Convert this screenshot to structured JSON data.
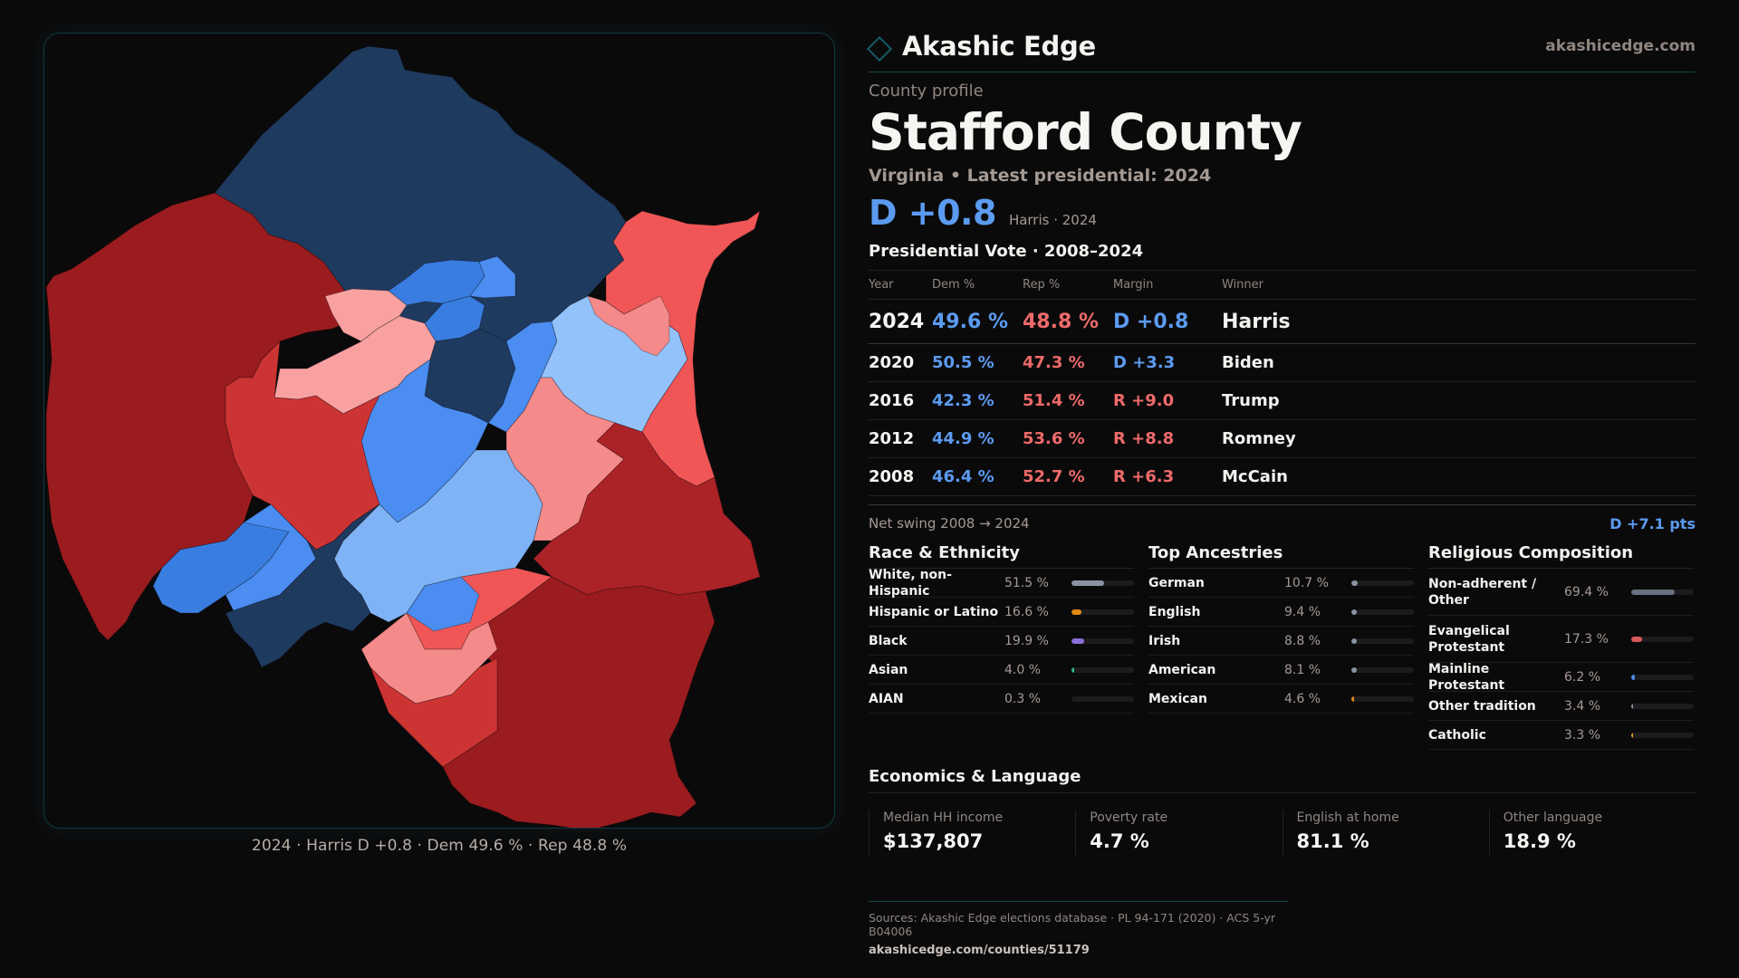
{
  "brand": {
    "name": "Akashic Edge",
    "url": "akashicedge.com",
    "icon": "diamond-outline-icon"
  },
  "profile": {
    "eyebrow": "County profile",
    "county": "Stafford County",
    "subtitle": "Virginia • Latest presidential: 2024",
    "headline_margin": "D +0.8",
    "headline_note": "Harris · 2024"
  },
  "map": {
    "caption": "2024 · Harris D +0.8 · Dem 49.6 % · Rep 48.8 %",
    "colors": {
      "dem_strong": "#1f3a5f",
      "dem_lean": "#3a7de0",
      "dem_mid": "#4b8df0",
      "dem_light": "#7fb3f5",
      "dem_pale": "#93c2fb",
      "rep_strong": "#9a1c1f",
      "rep_mid": "#ab2327",
      "rep_lean": "#cc3434",
      "rep_light": "#f05656",
      "rep_pale": "#f58a8a",
      "rep_faint": "#f9a1a1"
    }
  },
  "presidential": {
    "title": "Presidential Vote · 2008–2024",
    "columns": [
      "Year",
      "Dem %",
      "Rep %",
      "Margin",
      "Winner"
    ],
    "rows": [
      {
        "year": "2024",
        "dem": "49.6 %",
        "rep": "48.8 %",
        "margin": "D +0.8",
        "party": "D",
        "winner": "Harris"
      },
      {
        "year": "2020",
        "dem": "50.5 %",
        "rep": "47.3 %",
        "margin": "D +3.3",
        "party": "D",
        "winner": "Biden"
      },
      {
        "year": "2016",
        "dem": "42.3 %",
        "rep": "51.4 %",
        "margin": "R +9.0",
        "party": "R",
        "winner": "Trump"
      },
      {
        "year": "2012",
        "dem": "44.9 %",
        "rep": "53.6 %",
        "margin": "R +8.8",
        "party": "R",
        "winner": "Romney"
      },
      {
        "year": "2008",
        "dem": "46.4 %",
        "rep": "52.7 %",
        "margin": "R +6.3",
        "party": "R",
        "winner": "McCain"
      }
    ],
    "swing_label": "Net swing 2008 → 2024",
    "swing_value": "D +7.1 pts"
  },
  "race": {
    "title": "Race & Ethnicity",
    "items": [
      {
        "label": "White, non-Hispanic",
        "value": "51.5 %",
        "pct": 51.5,
        "color": "#8b93a3"
      },
      {
        "label": "Hispanic or Latino",
        "value": "16.6 %",
        "pct": 16.6,
        "color": "#e08a12"
      },
      {
        "label": "Black",
        "value": "19.9 %",
        "pct": 19.9,
        "color": "#8a6fd8"
      },
      {
        "label": "Asian",
        "value": "4.0 %",
        "pct": 4.0,
        "color": "#2fb58a"
      },
      {
        "label": "AIAN",
        "value": "0.3 %",
        "pct": 0.3,
        "color": "#8b93a3"
      }
    ]
  },
  "ancestry": {
    "title": "Top Ancestries",
    "items": [
      {
        "label": "German",
        "value": "10.7 %",
        "pct": 10.7,
        "color": "#8b93a3"
      },
      {
        "label": "English",
        "value": "9.4 %",
        "pct": 9.4,
        "color": "#8b93a3"
      },
      {
        "label": "Irish",
        "value": "8.8 %",
        "pct": 8.8,
        "color": "#8b93a3"
      },
      {
        "label": "American",
        "value": "8.1 %",
        "pct": 8.1,
        "color": "#8b93a3"
      },
      {
        "label": "Mexican",
        "value": "4.6 %",
        "pct": 4.6,
        "color": "#e08a12"
      }
    ]
  },
  "religion": {
    "title": "Religious Composition",
    "items": [
      {
        "label": "Non-adherent / Other",
        "value": "69.4 %",
        "pct": 69.4,
        "color": "#6b7080",
        "tall": true
      },
      {
        "label": "Evangelical Protestant",
        "value": "17.3 %",
        "pct": 17.3,
        "color": "#d65a5a",
        "tall": true
      },
      {
        "label": "Mainline Protestant",
        "value": "6.2 %",
        "pct": 6.2,
        "color": "#4b8df0",
        "tall": false
      },
      {
        "label": "Other tradition",
        "value": "3.4 %",
        "pct": 3.4,
        "color": "#8b93a3",
        "tall": false
      },
      {
        "label": "Catholic",
        "value": "3.3 %",
        "pct": 3.3,
        "color": "#e0a020",
        "tall": false
      }
    ]
  },
  "economics": {
    "title": "Economics & Language",
    "cards": [
      {
        "label": "Median HH income",
        "value": "$137,807"
      },
      {
        "label": "Poverty rate",
        "value": "4.7 %"
      },
      {
        "label": "English at home",
        "value": "81.1 %"
      },
      {
        "label": "Other language",
        "value": "18.9 %"
      }
    ]
  },
  "footer": {
    "sources": "Sources: Akashic Edge elections database · PL 94-171 (2020) · ACS 5-yr B04006",
    "url": "akashicedge.com/counties/51179"
  }
}
